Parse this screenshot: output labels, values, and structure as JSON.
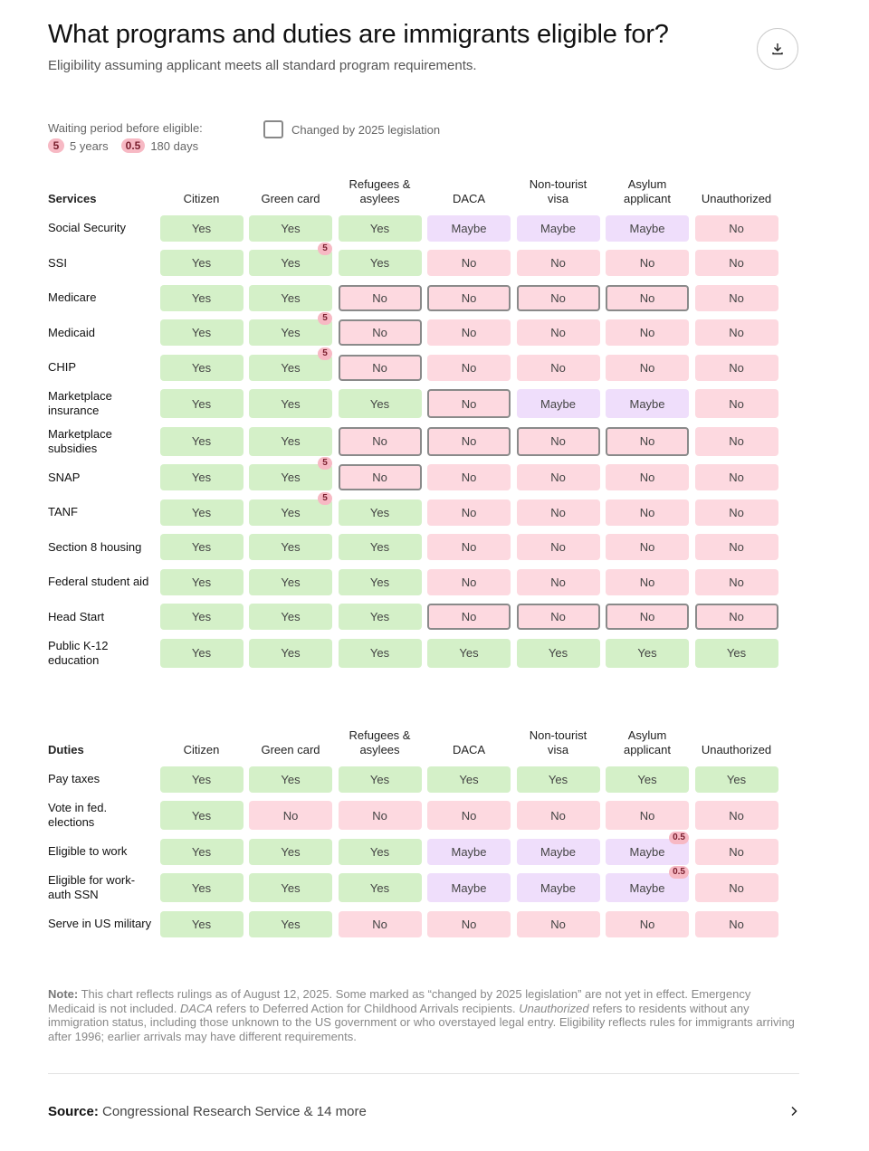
{
  "header": {
    "title": "What programs and duties are immigrants eligible for?",
    "subtitle": "Eligibility assuming applicant meets all standard program requirements."
  },
  "legend": {
    "waiting_label": "Waiting period before eligible:",
    "items": [
      {
        "badge": "5",
        "label": "5 years"
      },
      {
        "badge": "0.5",
        "label": "180 days"
      }
    ],
    "changed_label": "Changed by 2025 legislation"
  },
  "tables": [
    {
      "heading": "Services",
      "columns": [
        "Citizen",
        "Green card",
        "Refugees & asylees",
        "DACA",
        "Non-tourist visa",
        "Asylum applicant",
        "Unauthorized"
      ],
      "rows": [
        {
          "label": "Social Security",
          "cells": [
            {
              "text": "Yes"
            },
            {
              "text": "Yes"
            },
            {
              "text": "Yes"
            },
            {
              "text": "Maybe"
            },
            {
              "text": "Maybe"
            },
            {
              "text": "Maybe"
            },
            {
              "text": "No"
            }
          ]
        },
        {
          "label": "SSI",
          "cells": [
            {
              "text": "Yes"
            },
            {
              "text": "Yes",
              "badge": "5"
            },
            {
              "text": "Yes"
            },
            {
              "text": "No"
            },
            {
              "text": "No"
            },
            {
              "text": "No"
            },
            {
              "text": "No"
            }
          ]
        },
        {
          "label": "Medicare",
          "cells": [
            {
              "text": "Yes"
            },
            {
              "text": "Yes"
            },
            {
              "text": "No",
              "changed": true
            },
            {
              "text": "No",
              "changed": true
            },
            {
              "text": "No",
              "changed": true
            },
            {
              "text": "No",
              "changed": true
            },
            {
              "text": "No"
            }
          ]
        },
        {
          "label": "Medicaid",
          "cells": [
            {
              "text": "Yes"
            },
            {
              "text": "Yes",
              "badge": "5"
            },
            {
              "text": "No",
              "changed": true
            },
            {
              "text": "No"
            },
            {
              "text": "No"
            },
            {
              "text": "No"
            },
            {
              "text": "No"
            }
          ]
        },
        {
          "label": "CHIP",
          "cells": [
            {
              "text": "Yes"
            },
            {
              "text": "Yes",
              "badge": "5"
            },
            {
              "text": "No",
              "changed": true
            },
            {
              "text": "No"
            },
            {
              "text": "No"
            },
            {
              "text": "No"
            },
            {
              "text": "No"
            }
          ]
        },
        {
          "label": "Marketplace insurance",
          "cells": [
            {
              "text": "Yes"
            },
            {
              "text": "Yes"
            },
            {
              "text": "Yes"
            },
            {
              "text": "No",
              "changed": true
            },
            {
              "text": "Maybe"
            },
            {
              "text": "Maybe"
            },
            {
              "text": "No"
            }
          ]
        },
        {
          "label": "Marketplace subsidies",
          "cells": [
            {
              "text": "Yes"
            },
            {
              "text": "Yes"
            },
            {
              "text": "No",
              "changed": true
            },
            {
              "text": "No",
              "changed": true
            },
            {
              "text": "No",
              "changed": true
            },
            {
              "text": "No",
              "changed": true
            },
            {
              "text": "No"
            }
          ]
        },
        {
          "label": "SNAP",
          "cells": [
            {
              "text": "Yes"
            },
            {
              "text": "Yes",
              "badge": "5"
            },
            {
              "text": "No",
              "changed": true
            },
            {
              "text": "No"
            },
            {
              "text": "No"
            },
            {
              "text": "No"
            },
            {
              "text": "No"
            }
          ]
        },
        {
          "label": "TANF",
          "cells": [
            {
              "text": "Yes"
            },
            {
              "text": "Yes",
              "badge": "5"
            },
            {
              "text": "Yes"
            },
            {
              "text": "No"
            },
            {
              "text": "No"
            },
            {
              "text": "No"
            },
            {
              "text": "No"
            }
          ]
        },
        {
          "label": "Section 8 housing",
          "cells": [
            {
              "text": "Yes"
            },
            {
              "text": "Yes"
            },
            {
              "text": "Yes"
            },
            {
              "text": "No"
            },
            {
              "text": "No"
            },
            {
              "text": "No"
            },
            {
              "text": "No"
            }
          ]
        },
        {
          "label": "Federal student aid",
          "cells": [
            {
              "text": "Yes"
            },
            {
              "text": "Yes"
            },
            {
              "text": "Yes"
            },
            {
              "text": "No"
            },
            {
              "text": "No"
            },
            {
              "text": "No"
            },
            {
              "text": "No"
            }
          ]
        },
        {
          "label": "Head Start",
          "cells": [
            {
              "text": "Yes"
            },
            {
              "text": "Yes"
            },
            {
              "text": "Yes"
            },
            {
              "text": "No",
              "changed": true
            },
            {
              "text": "No",
              "changed": true
            },
            {
              "text": "No",
              "changed": true
            },
            {
              "text": "No",
              "changed": true
            }
          ]
        },
        {
          "label": "Public K-12 education",
          "cells": [
            {
              "text": "Yes"
            },
            {
              "text": "Yes"
            },
            {
              "text": "Yes"
            },
            {
              "text": "Yes"
            },
            {
              "text": "Yes"
            },
            {
              "text": "Yes"
            },
            {
              "text": "Yes"
            }
          ]
        }
      ]
    },
    {
      "heading": "Duties",
      "columns": [
        "Citizen",
        "Green card",
        "Refugees & asylees",
        "DACA",
        "Non-tourist visa",
        "Asylum applicant",
        "Unauthorized"
      ],
      "rows": [
        {
          "label": "Pay taxes",
          "cells": [
            {
              "text": "Yes"
            },
            {
              "text": "Yes"
            },
            {
              "text": "Yes"
            },
            {
              "text": "Yes"
            },
            {
              "text": "Yes"
            },
            {
              "text": "Yes"
            },
            {
              "text": "Yes"
            }
          ]
        },
        {
          "label": "Vote in fed. elections",
          "cells": [
            {
              "text": "Yes"
            },
            {
              "text": "No"
            },
            {
              "text": "No"
            },
            {
              "text": "No"
            },
            {
              "text": "No"
            },
            {
              "text": "No"
            },
            {
              "text": "No"
            }
          ]
        },
        {
          "label": "Eligible to work",
          "cells": [
            {
              "text": "Yes"
            },
            {
              "text": "Yes"
            },
            {
              "text": "Yes"
            },
            {
              "text": "Maybe"
            },
            {
              "text": "Maybe"
            },
            {
              "text": "Maybe",
              "badge": "0.5"
            },
            {
              "text": "No"
            }
          ]
        },
        {
          "label": "Eligible for work-auth SSN",
          "cells": [
            {
              "text": "Yes"
            },
            {
              "text": "Yes"
            },
            {
              "text": "Yes"
            },
            {
              "text": "Maybe"
            },
            {
              "text": "Maybe"
            },
            {
              "text": "Maybe",
              "badge": "0.5"
            },
            {
              "text": "No"
            }
          ]
        },
        {
          "label": "Serve in US military",
          "cells": [
            {
              "text": "Yes"
            },
            {
              "text": "Yes"
            },
            {
              "text": "No"
            },
            {
              "text": "No"
            },
            {
              "text": "No"
            },
            {
              "text": "No"
            },
            {
              "text": "No"
            }
          ]
        }
      ]
    }
  ],
  "note": [
    {
      "text": "Note:",
      "style": "bold"
    },
    {
      "text": " This chart reflects rulings as of August 12, 2025. Some marked as “changed by 2025 legislation” are not yet in effect. Emergency Medicaid is not included. "
    },
    {
      "text": "DACA",
      "style": "italic"
    },
    {
      "text": " refers to Deferred Action for Childhood Arrivals recipients. "
    },
    {
      "text": "Unauthorized",
      "style": "italic"
    },
    {
      "text": " refers to residents without any immigration status, including those unknown to the US government or who overstayed legal entry. Eligibility reflects rules for immigrants arriving after 1996; earlier arrivals may have different requirements."
    }
  ],
  "source": {
    "label": "Source:",
    "text": "Congressional Research Service & 14 more"
  }
}
